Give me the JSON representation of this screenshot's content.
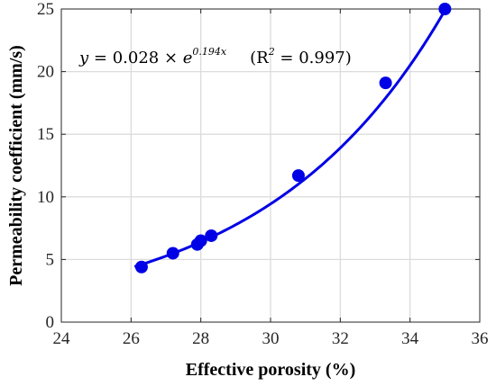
{
  "chart_data": {
    "type": "scatter",
    "xlabel": "Effective porosity (%)",
    "ylabel": "Permeability coefficient (mm/s)",
    "xlim": [
      24,
      36
    ],
    "ylim": [
      0,
      25
    ],
    "xticks": [
      24,
      26,
      28,
      30,
      32,
      34,
      36
    ],
    "yticks": [
      0,
      5,
      10,
      15,
      20,
      25
    ],
    "grid": true,
    "points": [
      {
        "x": 26.3,
        "y": 4.4
      },
      {
        "x": 27.2,
        "y": 5.5
      },
      {
        "x": 27.9,
        "y": 6.2
      },
      {
        "x": 28.0,
        "y": 6.5
      },
      {
        "x": 28.3,
        "y": 6.9
      },
      {
        "x": 30.8,
        "y": 11.7
      },
      {
        "x": 33.3,
        "y": 19.1
      },
      {
        "x": 35.0,
        "y": 25.0
      }
    ],
    "fit": {
      "a": 0.028,
      "b": 0.194,
      "x_range": [
        26.1,
        35.0
      ]
    },
    "equation": {
      "y": "y",
      "lhs": " = 0.028 × ",
      "e": "e",
      "exp": "0.194x",
      "r2_label": "(R",
      "r2_sup": "2",
      "r2_value": " = 0.997)"
    },
    "colors": {
      "series": "#0000e6",
      "grid": "#dcdcdc",
      "axis": "#262626"
    }
  }
}
